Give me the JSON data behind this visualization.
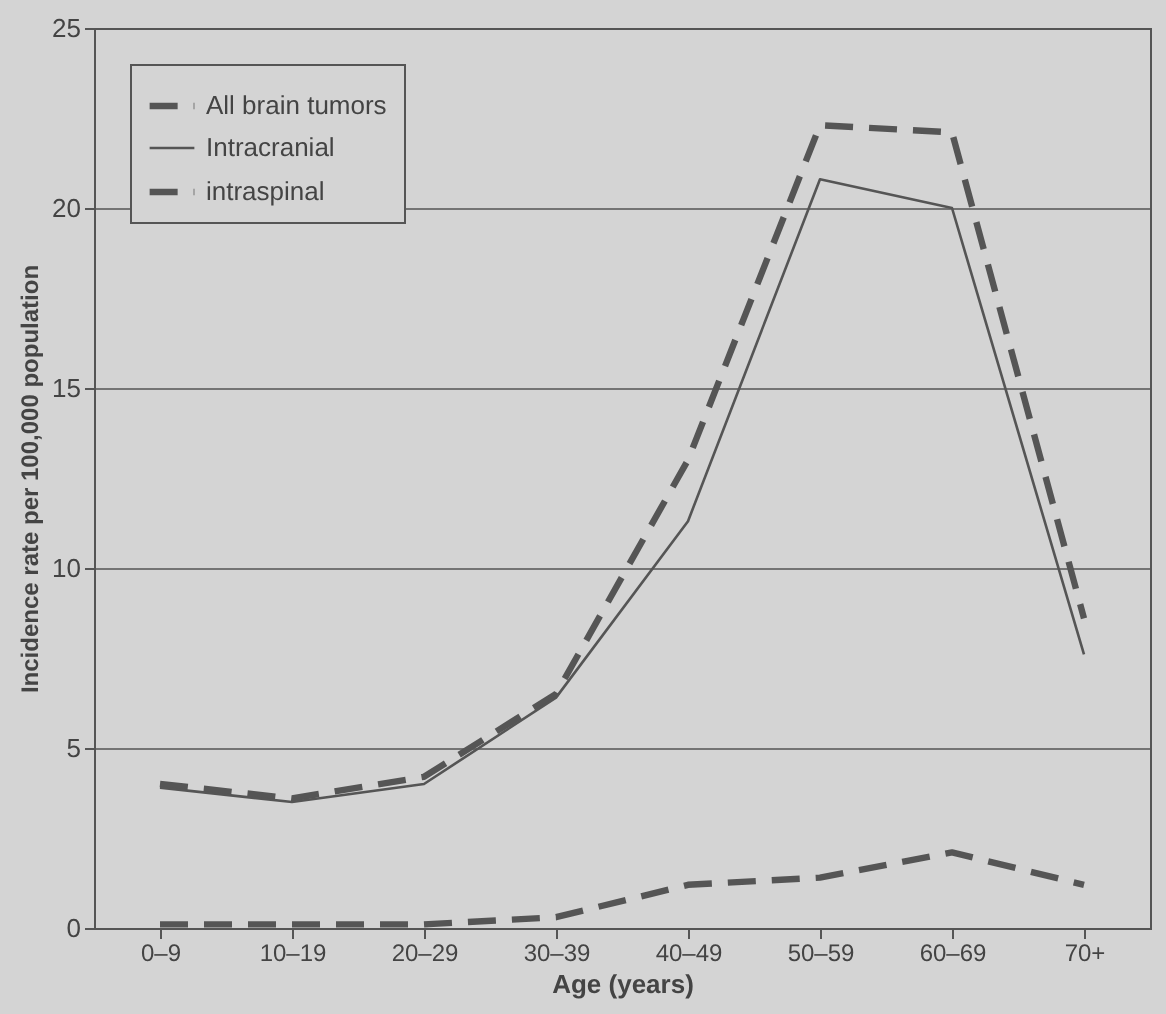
{
  "chart_data": {
    "type": "line",
    "xlabel": "Age (years)",
    "ylabel": "Incidence rate per 100,000 population",
    "categories": [
      "0–9",
      "10–19",
      "20–29",
      "30–39",
      "40–49",
      "50–59",
      "60–69",
      "70+"
    ],
    "series": [
      {
        "name": "All brain tumors",
        "color": "#555555",
        "line_style": "dashed",
        "values": [
          4.0,
          3.6,
          4.2,
          6.5,
          13.0,
          22.3,
          22.1,
          8.6
        ]
      },
      {
        "name": "Intracranial",
        "color": "#555555",
        "line_style": "solid",
        "values": [
          3.9,
          3.5,
          4.0,
          6.4,
          11.3,
          20.8,
          20.0,
          7.6
        ]
      },
      {
        "name": "intraspinal",
        "color": "#555555",
        "line_style": "dashed",
        "values": [
          0.1,
          0.1,
          0.1,
          0.3,
          1.2,
          1.4,
          2.1,
          1.2
        ]
      }
    ],
    "ylim": [
      0,
      25
    ],
    "yticks": [
      0,
      5,
      10,
      15,
      20,
      25
    ],
    "grid": "y",
    "legend": "top left",
    "marker": "none"
  }
}
